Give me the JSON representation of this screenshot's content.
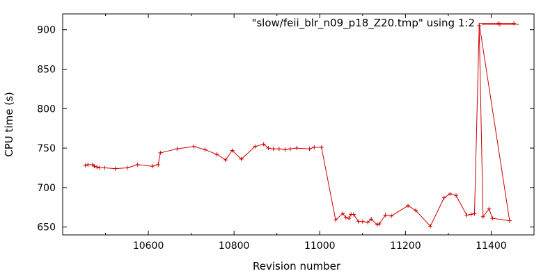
{
  "chart_data": {
    "type": "line",
    "xlabel": "Revision number",
    "ylabel": "CPU time (s)",
    "xlim": [
      10400,
      11500
    ],
    "ylim": [
      640,
      920
    ],
    "xticks": [
      "10600",
      "10800",
      "11000",
      "11200",
      "11400"
    ],
    "yticks": [
      "650",
      "700",
      "750",
      "800",
      "850",
      "900"
    ],
    "legend_position": "top-right",
    "grid": false,
    "series": [
      {
        "name": "\"slow/feii_blr_n09_p18_Z20.tmp\" using 1:2",
        "color": "#cc0000",
        "points": [
          [
            10453,
            728
          ],
          [
            10459,
            729
          ],
          [
            10470,
            729
          ],
          [
            10474,
            727
          ],
          [
            10480,
            726
          ],
          [
            10486,
            725
          ],
          [
            10498,
            725
          ],
          [
            10523,
            724
          ],
          [
            10551,
            725
          ],
          [
            10575,
            729
          ],
          [
            10609,
            727
          ],
          [
            10623,
            729
          ],
          [
            10628,
            744
          ],
          [
            10667,
            749
          ],
          [
            10706,
            752
          ],
          [
            10732,
            748
          ],
          [
            10760,
            742
          ],
          [
            10780,
            735
          ],
          [
            10796,
            747
          ],
          [
            10817,
            736
          ],
          [
            10849,
            752
          ],
          [
            10869,
            755
          ],
          [
            10880,
            750
          ],
          [
            10892,
            749
          ],
          [
            10905,
            749
          ],
          [
            10919,
            748
          ],
          [
            10931,
            749
          ],
          [
            10946,
            750
          ],
          [
            10976,
            749
          ],
          [
            10987,
            751
          ],
          [
            11004,
            751
          ],
          [
            11037,
            659
          ],
          [
            11054,
            667
          ],
          [
            11061,
            662
          ],
          [
            11068,
            661
          ],
          [
            11073,
            666
          ],
          [
            11079,
            666
          ],
          [
            11090,
            657
          ],
          [
            11100,
            657
          ],
          [
            11112,
            656
          ],
          [
            11120,
            660
          ],
          [
            11134,
            653
          ],
          [
            11139,
            654
          ],
          [
            11153,
            665
          ],
          [
            11167,
            664
          ],
          [
            11206,
            677
          ],
          [
            11224,
            671
          ],
          [
            11258,
            651
          ],
          [
            11290,
            687
          ],
          [
            11304,
            692
          ],
          [
            11318,
            690
          ],
          [
            11343,
            665
          ],
          [
            11353,
            666
          ],
          [
            11361,
            667
          ],
          [
            11372,
            905
          ],
          [
            11381,
            663
          ],
          [
            11395,
            673
          ],
          [
            11403,
            661
          ],
          [
            11443,
            658
          ]
        ],
        "tail_segment": [
          [
            11372,
            908
          ],
          [
            11416,
            908
          ],
          [
            11453,
            908
          ]
        ]
      }
    ]
  }
}
